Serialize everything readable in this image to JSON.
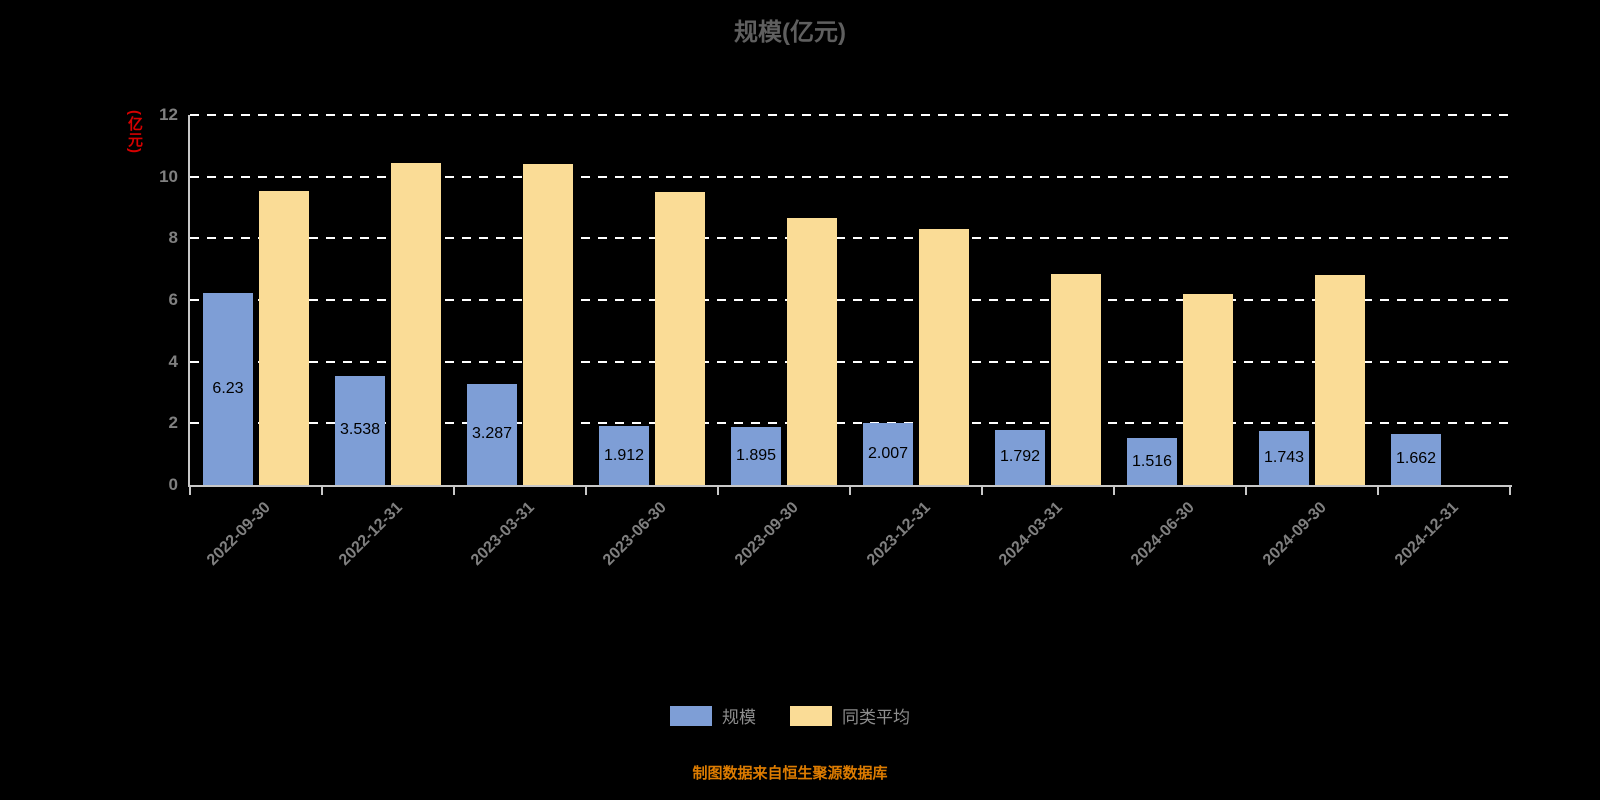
{
  "title": "规模(亿元)",
  "y_axis_label": "(亿元)",
  "footer_note": "制图数据来自恒生聚源数据库",
  "colors": {
    "background": "#000000",
    "scale_bar": "#7E9ED6",
    "average_bar": "#FADC96",
    "gridline": "#FFFFFF",
    "axis": "#C8C8C8",
    "title_text": "#5F5F5F",
    "tick_text": "#808080",
    "unit_text": "#D60000",
    "value_label_text": "#000000",
    "legend_text": "#8C8C8C",
    "footer_text": "#DE7C00"
  },
  "chart_data": {
    "type": "bar",
    "title": "规模(亿元)",
    "ylabel": "(亿元)",
    "categories": [
      "2022-09-30",
      "2022-12-31",
      "2023-03-31",
      "2023-06-30",
      "2023-09-30",
      "2023-12-31",
      "2024-03-31",
      "2024-06-30",
      "2024-09-30",
      "2024-12-31"
    ],
    "series": [
      {
        "name": "规模",
        "color": "#7E9ED6",
        "values": [
          6.23,
          3.538,
          3.287,
          1.912,
          1.895,
          2.007,
          1.792,
          1.516,
          1.743,
          1.662
        ],
        "value_labels": [
          "6.23",
          "3.538",
          "3.287",
          "1.912",
          "1.895",
          "2.007",
          "1.792",
          "1.516",
          "1.743",
          "1.662"
        ]
      },
      {
        "name": "同类平均",
        "color": "#FADC96",
        "values": [
          9.55,
          10.45,
          10.4,
          9.5,
          8.65,
          8.3,
          6.85,
          6.2,
          6.8,
          null
        ]
      }
    ],
    "ylim": [
      0,
      12
    ],
    "yticks": [
      0,
      2,
      4,
      6,
      8,
      10,
      12
    ],
    "grid": true,
    "grid_style": "dashed",
    "legend_position": "bottom"
  }
}
